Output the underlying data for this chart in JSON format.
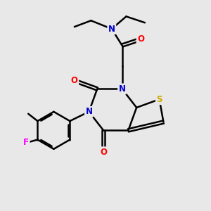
{
  "background_color": "#e8e8e8",
  "atom_colors": {
    "N": "#0000cc",
    "O": "#ff0000",
    "S": "#ccaa00",
    "F": "#ff00ff",
    "C": "#000000"
  },
  "bond_color": "#000000",
  "bond_width": 1.8,
  "font_size_atom": 8.5
}
